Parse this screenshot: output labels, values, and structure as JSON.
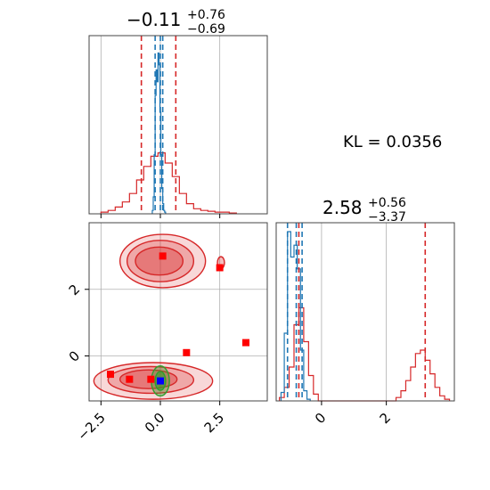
{
  "colors": {
    "posterior_a": "#d62728",
    "posterior_b": "#1f77b4",
    "truth_contour": "#2ca02c",
    "marker_truth": "#0000ff",
    "marker_samples": "#ff0000",
    "grid": "#b0b0b0"
  },
  "kl_text": "KL = 0.0356",
  "chart_data": [
    {
      "panel": "marginal-param1",
      "type": "histogram",
      "title": {
        "main": "−0.11",
        "sup": "+0.76",
        "sub": "−0.69"
      },
      "xlim": [
        -3.0,
        4.5
      ],
      "grid": true,
      "vlines_red": [
        -0.8,
        0.65
      ],
      "vlines_blue": [
        -0.22,
        0.0,
        0.1
      ],
      "series": [
        {
          "color": "posterior_a",
          "bin_edges": [
            -2.5,
            -2.2,
            -1.9,
            -1.6,
            -1.3,
            -1.0,
            -0.7,
            -0.4,
            -0.1,
            0.2,
            0.5,
            0.8,
            1.1,
            1.4,
            1.7,
            2.0,
            2.3,
            2.6,
            2.9,
            3.2
          ],
          "heights": [
            0.01,
            0.02,
            0.04,
            0.07,
            0.12,
            0.2,
            0.28,
            0.34,
            0.36,
            0.3,
            0.22,
            0.12,
            0.06,
            0.03,
            0.02,
            0.015,
            0.01,
            0.01,
            0.005
          ]
        },
        {
          "color": "posterior_b",
          "bin_edges": [
            -0.34,
            -0.3,
            -0.26,
            -0.22,
            -0.18,
            -0.14,
            -0.1,
            -0.06,
            -0.02,
            0.02,
            0.06,
            0.1,
            0.14,
            0.18,
            0.22
          ],
          "heights": [
            0.02,
            0.1,
            0.35,
            0.7,
            0.85,
            0.78,
            0.95,
            0.88,
            0.6,
            0.35,
            0.15,
            0.06,
            0.02,
            0.01
          ]
        }
      ]
    },
    {
      "panel": "marginal-param2",
      "type": "histogram",
      "title": {
        "main": "2.58",
        "sup": "+0.56",
        "sub": "−3.37"
      },
      "xlim": [
        -1.4,
        4.1
      ],
      "xticks": [
        0,
        2
      ],
      "xtick_labels": [
        "0",
        "2"
      ],
      "grid": true,
      "vlines_red": [
        -0.7,
        3.2
      ],
      "vlines_blue": [
        -1.05,
        -0.78,
        -0.6
      ],
      "series": [
        {
          "color": "posterior_a",
          "bin_edges": [
            -1.3,
            -1.15,
            -1.0,
            -0.85,
            -0.7,
            -0.55,
            -0.4,
            -0.25,
            -0.1,
            0.05,
            0.2,
            0.35,
            0.5,
            0.65,
            0.8,
            0.95,
            1.1,
            1.25,
            1.4,
            1.55,
            1.7,
            1.85,
            2.0,
            2.15,
            2.3,
            2.45,
            2.6,
            2.75,
            2.9,
            3.05,
            3.2,
            3.35,
            3.5,
            3.65,
            3.8,
            3.95
          ],
          "heights": [
            0.02,
            0.08,
            0.2,
            0.45,
            0.55,
            0.35,
            0.15,
            0.04,
            0.0,
            0.0,
            0.0,
            0.0,
            0.0,
            0.0,
            0.0,
            0.0,
            0.0,
            0.0,
            0.0,
            0.0,
            0.0,
            0.0,
            0.0,
            0.0,
            0.02,
            0.06,
            0.12,
            0.2,
            0.28,
            0.3,
            0.24,
            0.16,
            0.08,
            0.03,
            0.01
          ]
        },
        {
          "color": "posterior_b",
          "bin_edges": [
            -1.25,
            -1.15,
            -1.05,
            -0.95,
            -0.85,
            -0.75,
            -0.65,
            -0.55,
            -0.45,
            -0.35
          ],
          "heights": [
            0.05,
            0.4,
            1.0,
            0.85,
            0.92,
            0.78,
            0.3,
            0.06,
            0.01
          ]
        }
      ]
    },
    {
      "panel": "joint",
      "type": "contour",
      "xlim": [
        -3.0,
        4.5
      ],
      "ylim": [
        -1.35,
        4.0
      ],
      "xticks": [
        -2.5,
        0.0,
        2.5
      ],
      "xtick_labels": [
        "−2.5",
        "0.0",
        "2.5"
      ],
      "yticks": [
        0,
        2
      ],
      "ytick_labels": [
        "0",
        "2"
      ],
      "grid": true,
      "contours": [
        {
          "color": "posterior_a",
          "center": [
            0.1,
            2.85
          ],
          "radii": [
            1.8,
            0.8
          ],
          "alpha": 0.3
        },
        {
          "color": "posterior_a",
          "center": [
            0.0,
            2.85
          ],
          "radii": [
            1.4,
            0.62
          ],
          "alpha": 0.45
        },
        {
          "color": "posterior_a",
          "center": [
            -0.05,
            2.85
          ],
          "radii": [
            1.0,
            0.42
          ],
          "alpha": 0.6
        },
        {
          "color": "posterior_a",
          "center": [
            -0.3,
            -0.75
          ],
          "radii": [
            2.5,
            0.55
          ],
          "alpha": 0.3
        },
        {
          "color": "posterior_a",
          "center": [
            -0.4,
            -0.72
          ],
          "radii": [
            1.8,
            0.4
          ],
          "alpha": 0.45
        },
        {
          "color": "posterior_a",
          "center": [
            -0.5,
            -0.7
          ],
          "radii": [
            1.2,
            0.28
          ],
          "alpha": 0.6
        },
        {
          "color": "posterior_a",
          "center": [
            2.55,
            2.8
          ],
          "radii": [
            0.15,
            0.18
          ],
          "alpha": 0.5
        },
        {
          "color": "truth_contour",
          "center": [
            0.0,
            -0.75
          ],
          "radii": [
            0.38,
            0.45
          ],
          "alpha": 0.55
        },
        {
          "color": "truth_contour",
          "center": [
            0.0,
            -0.75
          ],
          "radii": [
            0.22,
            0.28
          ],
          "alpha": 0.9
        }
      ],
      "markers_samples": [
        [
          0.1,
          3.0
        ],
        [
          2.5,
          2.65
        ],
        [
          1.1,
          0.1
        ],
        [
          3.6,
          0.4
        ],
        [
          -2.1,
          -0.55
        ],
        [
          -1.3,
          -0.7
        ],
        [
          -0.4,
          -0.7
        ]
      ],
      "marker_truth": [
        0.0,
        -0.75
      ]
    }
  ]
}
